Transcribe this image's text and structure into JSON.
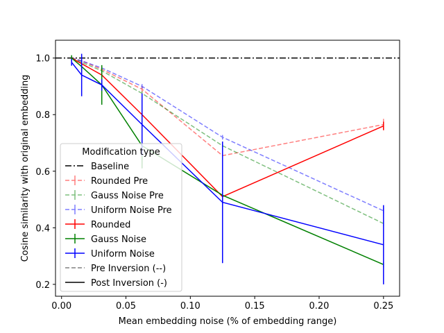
{
  "chart_data": {
    "type": "line",
    "xlabel": "Mean embedding noise (% of embedding range)",
    "ylabel": "Cosine similarity with original embedding",
    "xlim": [
      -0.0047,
      0.2625
    ],
    "ylim": [
      0.158,
      1.063
    ],
    "x_ticks": [
      0.0,
      0.05,
      0.1,
      0.15,
      0.2,
      0.25
    ],
    "x_tick_labels": [
      "0.00",
      "0.05",
      "0.10",
      "0.15",
      "0.20",
      "0.25"
    ],
    "y_ticks": [
      0.2,
      0.4,
      0.6,
      0.8,
      1.0
    ],
    "y_tick_labels": [
      "0.2",
      "0.4",
      "0.6",
      "0.8",
      "1.0"
    ],
    "grid": false,
    "legend": {
      "title": "Modification type",
      "placement": "lower-left",
      "entries": [
        {
          "label": "Baseline",
          "color": "#000000",
          "dash": "dashdot",
          "alpha": 1,
          "errbar": false
        },
        {
          "label": "Rounded Pre",
          "color": "#ff0000",
          "dash": "dashed",
          "alpha": 0.5,
          "errbar": true
        },
        {
          "label": "Gauss Noise Pre",
          "color": "#008000",
          "dash": "dashed",
          "alpha": 0.5,
          "errbar": true
        },
        {
          "label": "Uniform Noise Pre",
          "color": "#0000ff",
          "dash": "dashed",
          "alpha": 0.5,
          "errbar": true
        },
        {
          "label": "Rounded",
          "color": "#ff0000",
          "dash": "solid",
          "alpha": 1,
          "errbar": true
        },
        {
          "label": "Gauss Noise",
          "color": "#008000",
          "dash": "solid",
          "alpha": 1,
          "errbar": true
        },
        {
          "label": "Uniform Noise",
          "color": "#0000ff",
          "dash": "solid",
          "alpha": 1,
          "errbar": true
        },
        {
          "label": "Pre Inversion (--)",
          "color": "#808080",
          "dash": "dashed",
          "alpha": 1,
          "errbar": false
        },
        {
          "label": "Post Inversion (-)",
          "color": "#000000",
          "dash": "solid",
          "alpha": 1,
          "errbar": false
        }
      ]
    },
    "baseline": {
      "name": "Baseline",
      "y": 1.0,
      "color": "#000000"
    },
    "series": [
      {
        "name": "Rounded Pre",
        "color": "#ff0000",
        "dash": "dashed",
        "alpha": 0.5,
        "x": [
          0.0078,
          0.0156,
          0.03125,
          0.0625,
          0.125,
          0.25
        ],
        "y": [
          1.0,
          0.99,
          0.96,
          0.89,
          0.655,
          0.765
        ],
        "err": [
          0.003,
          0.004,
          0.006,
          0.01,
          0.01,
          0.02
        ]
      },
      {
        "name": "Gauss Noise Pre",
        "color": "#008000",
        "dash": "dashed",
        "alpha": 0.5,
        "x": [
          0.0078,
          0.0156,
          0.03125,
          0.0625,
          0.125,
          0.25
        ],
        "y": [
          1.0,
          0.985,
          0.955,
          0.875,
          0.69,
          0.415
        ],
        "err": [
          0.003,
          0.004,
          0.005,
          0.008,
          0.008,
          0.01
        ]
      },
      {
        "name": "Uniform Noise Pre",
        "color": "#0000ff",
        "dash": "dashed",
        "alpha": 0.5,
        "x": [
          0.0078,
          0.0156,
          0.03125,
          0.0625,
          0.125,
          0.25
        ],
        "y": [
          1.0,
          0.99,
          0.965,
          0.9,
          0.72,
          0.46
        ],
        "err": [
          0.003,
          0.004,
          0.005,
          0.008,
          0.008,
          0.01
        ]
      },
      {
        "name": "Rounded",
        "color": "#ff0000",
        "dash": "solid",
        "alpha": 1,
        "x": [
          0.0078,
          0.0156,
          0.03125,
          0.0625,
          0.125,
          0.25
        ],
        "y": [
          1.0,
          0.98,
          0.94,
          0.8,
          0.51,
          0.76
        ],
        "err": [
          0.004,
          0.006,
          0.01,
          0.02,
          0.01,
          0.015
        ]
      },
      {
        "name": "Gauss Noise",
        "color": "#008000",
        "dash": "solid",
        "alpha": 1,
        "x": [
          0.0078,
          0.0156,
          0.03125,
          0.0625,
          0.125,
          0.25
        ],
        "y": [
          1.0,
          0.97,
          0.905,
          0.69,
          0.515,
          0.27
        ],
        "err": [
          0.01,
          0.02,
          0.07,
          0.08,
          0.01,
          0.01
        ]
      },
      {
        "name": "Uniform Noise",
        "color": "#0000ff",
        "dash": "solid",
        "alpha": 1,
        "x": [
          0.0078,
          0.0156,
          0.03125,
          0.0625,
          0.125,
          0.25
        ],
        "y": [
          0.985,
          0.94,
          0.905,
          0.765,
          0.49,
          0.34
        ],
        "err": [
          0.012,
          0.075,
          0.02,
          0.11,
          0.215,
          0.14
        ]
      }
    ]
  }
}
